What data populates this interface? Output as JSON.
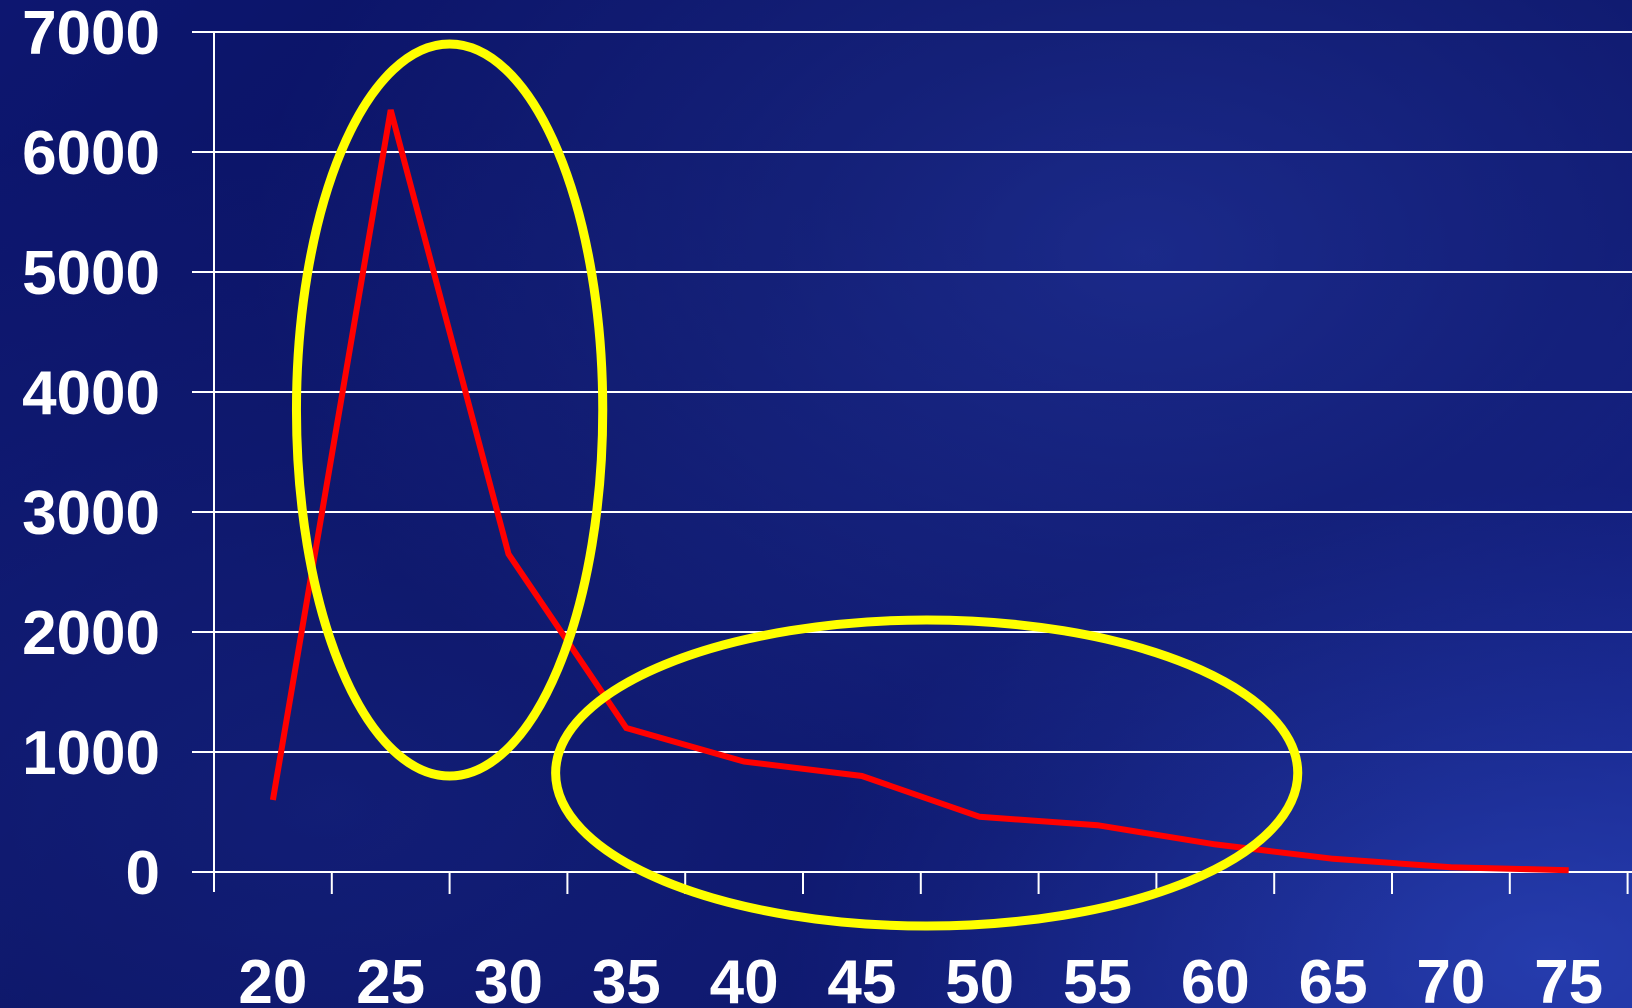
{
  "chart_data": {
    "type": "line",
    "x": [
      20,
      25,
      30,
      35,
      40,
      45,
      50,
      55,
      60,
      65,
      70,
      75
    ],
    "series": [
      {
        "values": [
          600,
          6350,
          2650,
          1200,
          920,
          800,
          460,
          390,
          230,
          110,
          40,
          15
        ]
      }
    ],
    "xticks": [
      "20",
      "25",
      "30",
      "35",
      "40",
      "45",
      "50",
      "55",
      "60",
      "65",
      "70",
      "75"
    ],
    "yticks": [
      "0",
      "1000",
      "2000",
      "3000",
      "4000",
      "5000",
      "6000",
      "7000"
    ],
    "ylim": [
      0,
      7000
    ],
    "grid": true,
    "colors": {
      "line": "#ff0000",
      "grid": "#ffffff",
      "highlight": "#ffff00"
    },
    "annotations": [
      {
        "shape": "ellipse",
        "color": "#ffff00",
        "x_range": [
          21,
          34
        ],
        "y_range": [
          800,
          6900
        ]
      },
      {
        "shape": "ellipse",
        "color": "#ffff00",
        "x_range": [
          32,
          63.5
        ],
        "y_range": [
          -450,
          2100
        ]
      }
    ]
  }
}
